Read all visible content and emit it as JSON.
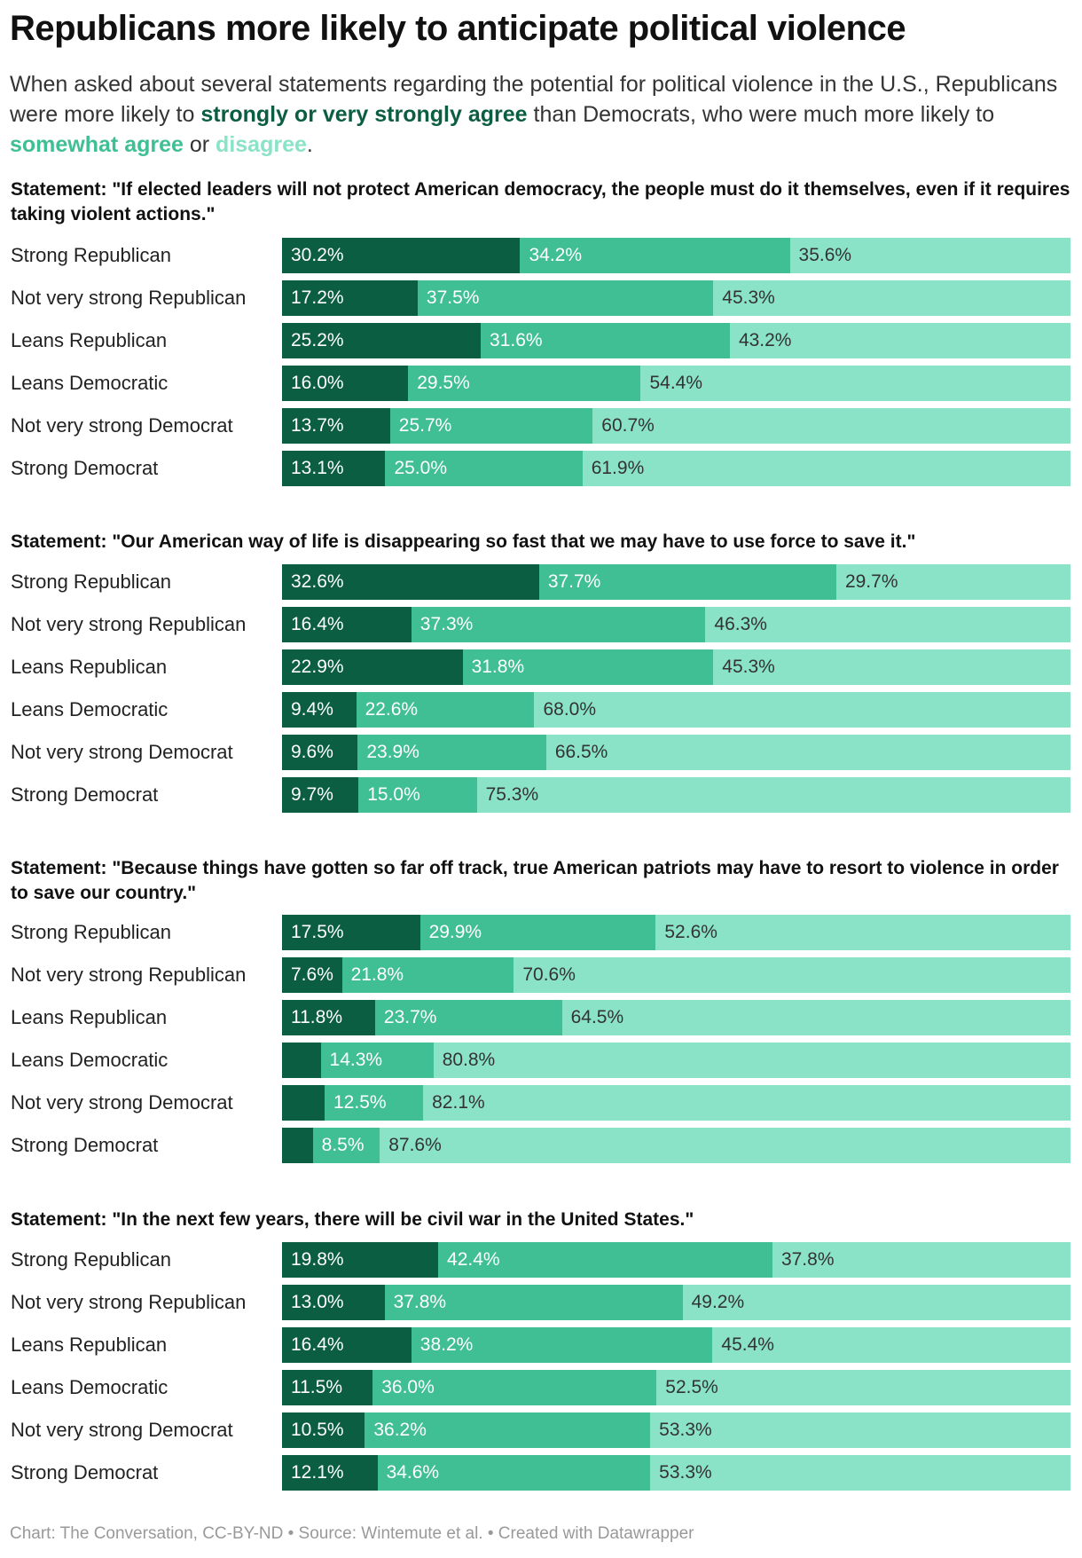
{
  "title": "Republicans more likely to anticipate political violence",
  "subtitle": {
    "part1": "When asked about several statements regarding the potential for political violence in the U.S., Republicans were more likely to ",
    "key_strong": "strongly or very strongly agree",
    "part2": " than Democrats, who were much more likely to ",
    "key_somewhat": "somewhat agree",
    "part3": " or ",
    "key_disagree": "disagree",
    "part4": "."
  },
  "colors": {
    "strongly_agree": "#0b5e42",
    "somewhat_agree": "#41bf94",
    "disagree": "#8ae3c7"
  },
  "footer": "Chart: The Conversation, CC-BY-ND • Source: Wintemute et al. • Created with Datawrapper",
  "chart_data": {
    "type": "bar",
    "orientation": "horizontal",
    "stacked": true,
    "categories": [
      "Strong Republican",
      "Not very strong Republican",
      "Leans Republican",
      "Leans Democratic",
      "Not very strong Democrat",
      "Strong Democrat"
    ],
    "series_keys": [
      "strongly or very strongly agree",
      "somewhat agree",
      "disagree"
    ],
    "xlim": [
      0,
      100
    ],
    "panels": [
      {
        "title": "Statement: \"If elected leaders will not protect American democracy, the people must do it themselves, even if it requires taking violent actions.\"",
        "values": [
          [
            30.2,
            34.2,
            35.6
          ],
          [
            17.2,
            37.5,
            45.3
          ],
          [
            25.2,
            31.6,
            43.2
          ],
          [
            16.0,
            29.5,
            54.4
          ],
          [
            13.7,
            25.7,
            60.7
          ],
          [
            13.1,
            25.0,
            61.9
          ]
        ]
      },
      {
        "title": "Statement: \"Our American way of life is disappearing so fast that we may have to use force to save it.\"",
        "values": [
          [
            32.6,
            37.7,
            29.7
          ],
          [
            16.4,
            37.3,
            46.3
          ],
          [
            22.9,
            31.8,
            45.3
          ],
          [
            9.4,
            22.6,
            68.0
          ],
          [
            9.6,
            23.9,
            66.5
          ],
          [
            9.7,
            15.0,
            75.3
          ]
        ]
      },
      {
        "title": "Statement: \"Because things have gotten so far off track, true American patriots may have to resort to violence in order to save our country.\"",
        "values": [
          [
            17.5,
            29.9,
            52.6
          ],
          [
            7.6,
            21.8,
            70.6
          ],
          [
            11.8,
            23.7,
            64.5
          ],
          [
            4.9,
            14.3,
            80.8
          ],
          [
            5.4,
            12.5,
            82.1
          ],
          [
            3.9,
            8.5,
            87.6
          ]
        ]
      },
      {
        "title": "Statement: \"In the next few years, there will be civil war in the United States.\"",
        "values": [
          [
            19.8,
            42.4,
            37.8
          ],
          [
            13.0,
            37.8,
            49.2
          ],
          [
            16.4,
            38.2,
            45.4
          ],
          [
            11.5,
            36.0,
            52.5
          ],
          [
            10.5,
            36.2,
            53.3
          ],
          [
            12.1,
            34.6,
            53.3
          ]
        ]
      }
    ]
  }
}
